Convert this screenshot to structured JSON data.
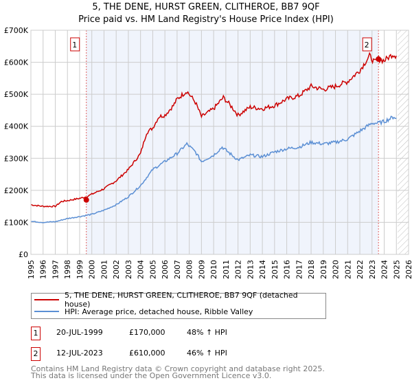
{
  "header": {
    "title": "5, THE DENE, HURST GREEN, CLITHEROE, BB7 9QF",
    "subtitle": "Price paid vs. HM Land Registry's House Price Index (HPI)"
  },
  "chart_data": {
    "type": "line",
    "title": "5, THE DENE, HURST GREEN, CLITHEROE, BB7 9QF",
    "subtitle": "Price paid vs. HM Land Registry's House Price Index (HPI)",
    "xlim": [
      1995,
      2026
    ],
    "ylim": [
      0,
      700000
    ],
    "yticks": [
      0,
      100000,
      200000,
      300000,
      400000,
      500000,
      600000,
      700000
    ],
    "ytick_labels": [
      "£0",
      "£100K",
      "£200K",
      "£300K",
      "£400K",
      "£500K",
      "£600K",
      "£700K"
    ],
    "xticks": [
      "1995",
      "1996",
      "1997",
      "1998",
      "1999",
      "2000",
      "2001",
      "2002",
      "2003",
      "2004",
      "2005",
      "2006",
      "2007",
      "2008",
      "2009",
      "2010",
      "2011",
      "2012",
      "2013",
      "2014",
      "2015",
      "2016",
      "2017",
      "2018",
      "2019",
      "2020",
      "2021",
      "2022",
      "2023",
      "2024",
      "2025",
      "2026"
    ],
    "grid": true,
    "shaded_range": [
      1999.55,
      2023.53
    ],
    "hatched_from": 2025.1,
    "series": [
      {
        "name": "5, THE DENE, HURST GREEN, CLITHEROE, BB7 9QF (detached house)",
        "color": "#cc0000",
        "x": [
          1995,
          1996,
          1997,
          1997.5,
          1998,
          1999,
          1999.55,
          2000,
          2001,
          2002,
          2003,
          2004,
          2004.5,
          2005,
          2005.5,
          2006,
          2006.7,
          2007,
          2007.8,
          2008.5,
          2009,
          2010,
          2010.8,
          2011.5,
          2012,
          2013,
          2014,
          2015,
          2016,
          2017,
          2018,
          2019,
          2020,
          2021,
          2022,
          2022.8,
          2023.2,
          2023.53,
          2024,
          2024.7,
          2025
        ],
        "y": [
          155000,
          150000,
          150000,
          165000,
          168000,
          175000,
          180000,
          188000,
          205000,
          230000,
          265000,
          315000,
          380000,
          395000,
          430000,
          435000,
          465000,
          485000,
          510000,
          475000,
          430000,
          455000,
          490000,
          460000,
          435000,
          460000,
          455000,
          465000,
          485000,
          495000,
          525000,
          515000,
          525000,
          540000,
          575000,
          620000,
          600000,
          610000,
          605000,
          625000,
          620000
        ]
      },
      {
        "name": "HPI: Average price, detached house, Ribble Valley",
        "color": "#5b8fd4",
        "x": [
          1995,
          1996,
          1997,
          1998,
          1999,
          2000,
          2001,
          2002,
          2003,
          2004,
          2005,
          2006,
          2007,
          2007.8,
          2008.5,
          2009,
          2010,
          2010.7,
          2011.5,
          2012,
          2013,
          2014,
          2015,
          2016,
          2017,
          2018,
          2019,
          2020,
          2021,
          2022,
          2023,
          2023.5,
          2024,
          2024.8,
          2025
        ],
        "y": [
          103000,
          100000,
          102000,
          112000,
          118000,
          125000,
          138000,
          155000,
          180000,
          215000,
          265000,
          290000,
          315000,
          345000,
          320000,
          290000,
          310000,
          335000,
          310000,
          295000,
          310000,
          305000,
          320000,
          330000,
          335000,
          350000,
          345000,
          350000,
          360000,
          385000,
          410000,
          410000,
          415000,
          430000,
          425000
        ]
      }
    ],
    "annotations": [
      {
        "label": "1",
        "x": 1999.55,
        "y": 170000
      },
      {
        "label": "2",
        "x": 2023.53,
        "y": 610000
      }
    ]
  },
  "legend": {
    "items": [
      "5, THE DENE, HURST GREEN, CLITHEROE, BB7 9QF (detached house)",
      "HPI: Average price, detached house, Ribble Valley"
    ]
  },
  "sales": [
    {
      "num": "1",
      "date": "20-JUL-1999",
      "price": "£170,000",
      "hpi": "48% ↑ HPI"
    },
    {
      "num": "2",
      "date": "12-JUL-2023",
      "price": "£610,000",
      "hpi": "46% ↑ HPI"
    }
  ],
  "footer": {
    "line1": "Contains HM Land Registry data © Crown copyright and database right 2025.",
    "line2": "This data is licensed under the Open Government Licence v3.0."
  }
}
